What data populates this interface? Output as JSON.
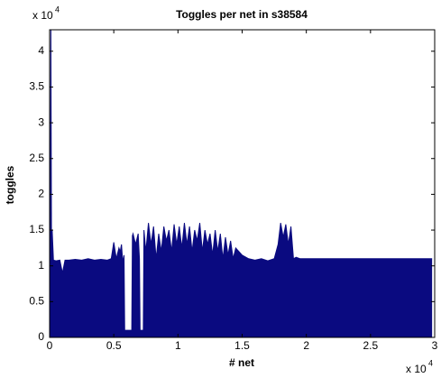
{
  "chart_data": {
    "type": "area",
    "title": "Toggles per net in s38584",
    "x_label": "# net",
    "y_label": "toggles",
    "x_multiplier": {
      "base": "x 10",
      "exponent": "4"
    },
    "y_multiplier": {
      "base": "x 10",
      "exponent": "4"
    },
    "color": "#0a0a80",
    "x": [
      0,
      0.005,
      0.01,
      0.015,
      0.02,
      0.03,
      0.05,
      0.08,
      0.1,
      0.12,
      0.15,
      0.2,
      0.25,
      0.3,
      0.35,
      0.4,
      0.45,
      0.48,
      0.5,
      0.52,
      0.54,
      0.55,
      0.56,
      0.57,
      0.58,
      0.585,
      0.6,
      0.62,
      0.64,
      0.645,
      0.65,
      0.67,
      0.69,
      0.7,
      0.705,
      0.72,
      0.73,
      0.735,
      0.75,
      0.77,
      0.79,
      0.81,
      0.83,
      0.85,
      0.87,
      0.89,
      0.91,
      0.93,
      0.95,
      0.97,
      0.99,
      1.01,
      1.03,
      1.05,
      1.07,
      1.09,
      1.11,
      1.13,
      1.15,
      1.17,
      1.19,
      1.21,
      1.23,
      1.25,
      1.27,
      1.29,
      1.31,
      1.33,
      1.35,
      1.37,
      1.39,
      1.41,
      1.43,
      1.45,
      1.5,
      1.55,
      1.6,
      1.65,
      1.7,
      1.75,
      1.78,
      1.8,
      1.82,
      1.84,
      1.86,
      1.88,
      1.9,
      1.92,
      1.95,
      2.0,
      2.2,
      2.4,
      2.6,
      2.8,
      2.98
    ],
    "values": [
      1.05,
      1.1,
      4.3,
      1.1,
      1.5,
      1.08,
      1.07,
      1.08,
      0.9,
      1.08,
      1.08,
      1.09,
      1.08,
      1.1,
      1.08,
      1.09,
      1.08,
      1.1,
      1.33,
      1.1,
      1.25,
      1.2,
      1.3,
      1.05,
      1.15,
      0.1,
      0.1,
      0.1,
      0.1,
      1.42,
      1.45,
      1.3,
      1.45,
      1.1,
      0.1,
      0.1,
      0.1,
      1.5,
      1.2,
      1.6,
      1.3,
      1.55,
      1.1,
      1.45,
      1.2,
      1.55,
      1.35,
      1.5,
      1.2,
      1.58,
      1.3,
      1.55,
      1.25,
      1.6,
      1.3,
      1.55,
      1.2,
      1.5,
      1.35,
      1.6,
      1.2,
      1.5,
      1.3,
      1.45,
      1.15,
      1.5,
      1.2,
      1.45,
      1.1,
      1.4,
      1.15,
      1.35,
      1.1,
      1.25,
      1.15,
      1.1,
      1.08,
      1.1,
      1.07,
      1.1,
      1.3,
      1.6,
      1.4,
      1.58,
      1.3,
      1.55,
      1.1,
      1.12,
      1.1,
      1.1,
      1.1,
      1.1,
      1.1,
      1.1,
      1.1
    ],
    "xlim": [
      0,
      3
    ],
    "ylim": [
      0,
      4.3
    ],
    "xticks": [
      0,
      0.5,
      1,
      1.5,
      2,
      2.5,
      3
    ],
    "yticks": [
      0,
      0.5,
      1,
      1.5,
      2,
      2.5,
      3,
      3.5,
      4
    ],
    "grid": false
  }
}
